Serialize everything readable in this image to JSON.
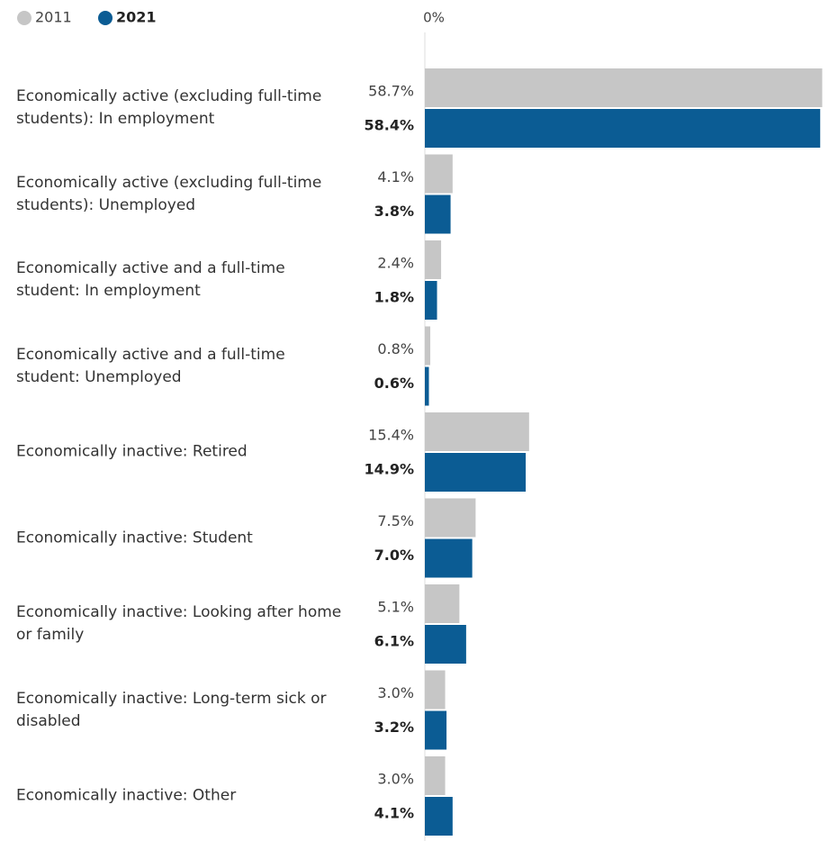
{
  "chart_data": {
    "type": "hbar",
    "categories": [
      "Economically active (excluding full-time students): In employment",
      "Economically active (excluding full-time students): Unemployed",
      "Economically active and a full-time student: In employment",
      "Economically active and a full-time student: Unemployed",
      "Economically inactive: Retired",
      "Economically inactive: Student",
      "Economically inactive: Looking after home or family",
      "Economically inactive: Long-term sick or disabled",
      "Economically inactive: Other"
    ],
    "series": [
      {
        "name": "2011",
        "color": "#c6c6c6",
        "values": [
          58.7,
          4.1,
          2.4,
          0.8,
          15.4,
          7.5,
          5.1,
          3.0,
          3.0
        ],
        "value_labels": [
          "58.7%",
          "4.1%",
          "2.4%",
          "0.8%",
          "15.4%",
          "7.5%",
          "5.1%",
          "3.0%",
          "3.0%"
        ]
      },
      {
        "name": "2021",
        "color": "#0b5c94",
        "values": [
          58.4,
          3.8,
          1.8,
          0.6,
          14.9,
          7.0,
          6.1,
          3.2,
          4.1
        ],
        "value_labels": [
          "58.4%",
          "3.8%",
          "1.8%",
          "0.6%",
          "14.9%",
          "7.0%",
          "6.1%",
          "3.2%",
          "4.1%"
        ]
      }
    ],
    "xlim": [
      0,
      59.7
    ],
    "xticks": [
      {
        "value": 0,
        "label": "0%"
      }
    ],
    "legend": "top-left"
  }
}
